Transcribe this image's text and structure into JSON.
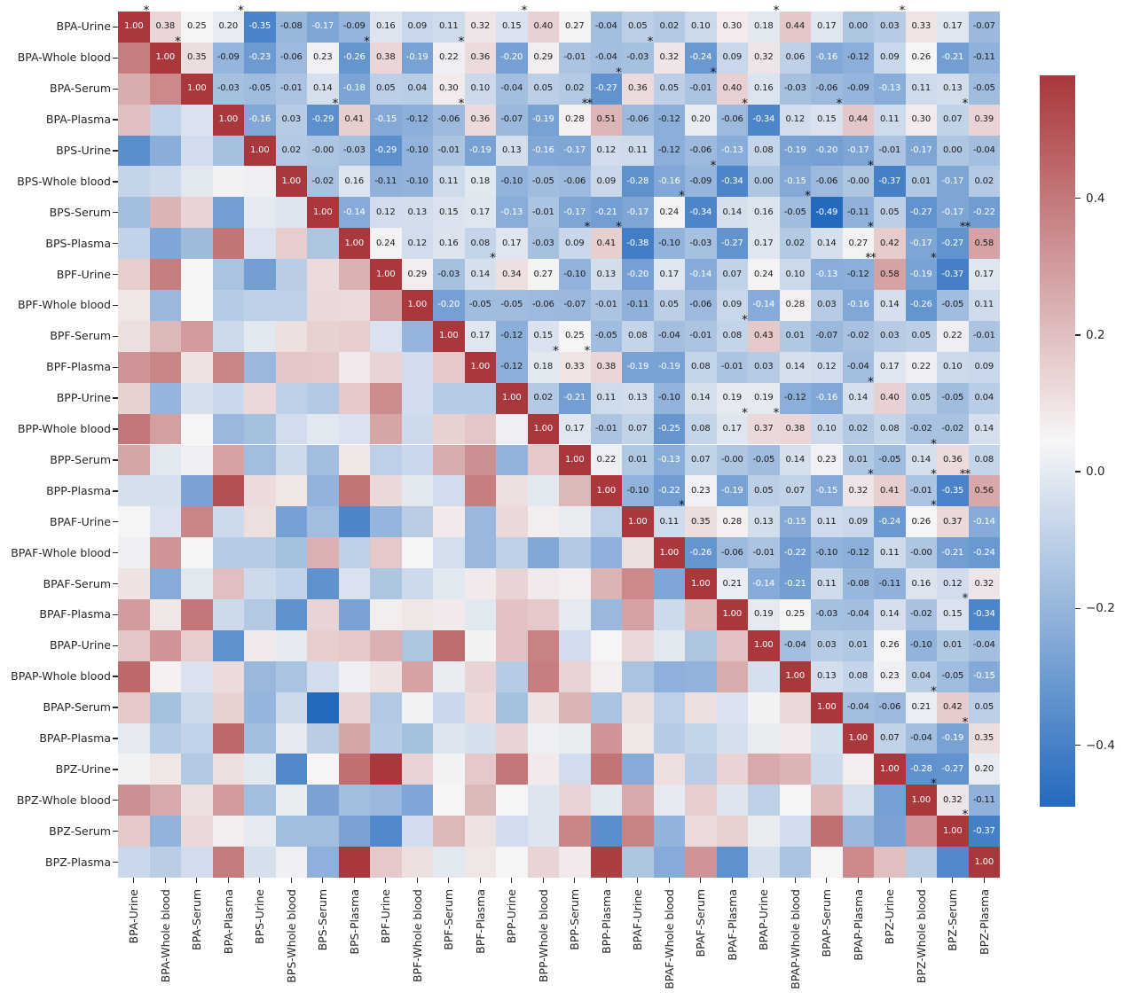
{
  "chart_data": {
    "type": "heatmap",
    "description": "Pairwise Spearman-style correlation matrix of bisphenol analogues (BPA, BPS, BPF, BPP, BPAF, BPAP, BPZ) measured in Urine, Whole blood, Serum and Plasma. Upper triangle and diagonal are annotated with coefficients; lower triangle shows mirrored colors only; asterisks mark significant cells.",
    "labels": [
      "BPA-Urine",
      "BPA-Whole blood",
      "BPA-Serum",
      "BPA-Plasma",
      "BPS-Urine",
      "BPS-Whole blood",
      "BPS-Serum",
      "BPS-Plasma",
      "BPF-Urine",
      "BPF-Whole blood",
      "BPF-Serum",
      "BPF-Plasma",
      "BPP-Urine",
      "BPP-Whole blood",
      "BPP-Serum",
      "BPP-Plasma",
      "BPAF-Urine",
      "BPAF-Whole blood",
      "BPAF-Serum",
      "BPAF-Plasma",
      "BPAP-Urine",
      "BPAP-Whole blood",
      "BPAP-Serum",
      "BPAP-Plasma",
      "BPZ-Urine",
      "BPZ-Whole blood",
      "BPZ-Serum",
      "BPZ-Plasma"
    ],
    "upper_triangle_rows": [
      [
        "1.00",
        "0.38",
        "0.25",
        "0.20",
        "-0.35",
        "-0.08",
        "-0.17",
        "-0.09",
        "0.16",
        "0.09",
        "0.11",
        "0.32",
        "0.15",
        "0.40",
        "0.27",
        "-0.04",
        "0.05",
        "0.02",
        "0.10",
        "0.30",
        "0.18",
        "0.44",
        "0.17",
        "0.00",
        "0.03",
        "0.33",
        "0.17",
        "-0.07"
      ],
      [
        "1.00",
        "0.35",
        "-0.09",
        "-0.23",
        "-0.06",
        "0.23",
        "-0.26",
        "0.38",
        "-0.19",
        "0.22",
        "0.36",
        "-0.20",
        "0.29",
        "-0.01",
        "-0.04",
        "-0.03",
        "0.32",
        "-0.24",
        "0.09",
        "0.32",
        "0.06",
        "-0.16",
        "-0.12",
        "0.09",
        "0.26",
        "-0.21",
        "-0.11"
      ],
      [
        "1.00",
        "-0.03",
        "-0.05",
        "-0.01",
        "0.14",
        "-0.18",
        "0.05",
        "0.04",
        "0.30",
        "0.10",
        "-0.04",
        "0.05",
        "0.02",
        "-0.27",
        "0.36",
        "0.05",
        "-0.01",
        "0.40",
        "0.16",
        "-0.03",
        "-0.06",
        "-0.09",
        "-0.13",
        "0.11",
        "0.13",
        "-0.05"
      ],
      [
        "1.00",
        "-0.16",
        "0.03",
        "-0.29",
        "0.41",
        "-0.15",
        "-0.12",
        "-0.06",
        "0.36",
        "-0.07",
        "-0.19",
        "0.28",
        "0.51",
        "-0.06",
        "-0.12",
        "0.20",
        "-0.06",
        "-0.34",
        "0.12",
        "0.15",
        "0.44",
        "0.11",
        "0.30",
        "0.07",
        "0.39"
      ],
      [
        "1.00",
        "0.02",
        "-0.00",
        "-0.03",
        "-0.29",
        "-0.10",
        "-0.01",
        "-0.19",
        "0.13",
        "-0.16",
        "-0.17",
        "0.12",
        "0.11",
        "-0.12",
        "-0.06",
        "-0.13",
        "0.08",
        "-0.19",
        "-0.20",
        "-0.17",
        "-0.01",
        "-0.17",
        "0.00",
        "-0.04"
      ],
      [
        "1.00",
        "-0.02",
        "0.16",
        "-0.11",
        "-0.10",
        "0.11",
        "0.18",
        "-0.10",
        "-0.05",
        "-0.06",
        "0.09",
        "-0.28",
        "-0.16",
        "-0.09",
        "-0.34",
        "0.00",
        "-0.15",
        "-0.06",
        "-0.00",
        "-0.37",
        "0.01",
        "-0.17",
        "0.02"
      ],
      [
        "1.00",
        "-0.14",
        "0.12",
        "0.13",
        "0.15",
        "0.17",
        "-0.13",
        "-0.01",
        "-0.17",
        "-0.21",
        "-0.17",
        "0.24",
        "-0.34",
        "0.14",
        "0.16",
        "-0.05",
        "-0.49",
        "-0.11",
        "0.05",
        "-0.27",
        "-0.17",
        "-0.22"
      ],
      [
        "1.00",
        "0.24",
        "0.12",
        "0.16",
        "0.08",
        "0.17",
        "-0.03",
        "0.09",
        "0.41",
        "-0.38",
        "-0.10",
        "-0.03",
        "-0.27",
        "0.17",
        "0.02",
        "0.14",
        "0.27",
        "0.42",
        "-0.17",
        "-0.27",
        "0.58"
      ],
      [
        "1.00",
        "0.29",
        "-0.03",
        "0.14",
        "0.34",
        "0.27",
        "-0.10",
        "0.13",
        "-0.20",
        "0.17",
        "-0.14",
        "0.07",
        "0.24",
        "0.10",
        "-0.13",
        "-0.12",
        "0.58",
        "-0.19",
        "-0.37",
        "0.17"
      ],
      [
        "1.00",
        "-0.20",
        "-0.05",
        "-0.05",
        "-0.06",
        "-0.07",
        "-0.01",
        "-0.11",
        "0.05",
        "-0.06",
        "0.09",
        "-0.14",
        "0.28",
        "0.03",
        "-0.16",
        "0.14",
        "-0.26",
        "-0.05",
        "0.11"
      ],
      [
        "1.00",
        "0.17",
        "-0.12",
        "0.15",
        "0.25",
        "-0.05",
        "0.08",
        "-0.04",
        "-0.01",
        "0.08",
        "0.43",
        "0.01",
        "-0.07",
        "-0.02",
        "0.03",
        "0.05",
        "0.22",
        "-0.01"
      ],
      [
        "1.00",
        "-0.12",
        "0.18",
        "0.33",
        "0.38",
        "-0.19",
        "-0.19",
        "0.08",
        "-0.01",
        "0.03",
        "0.14",
        "0.12",
        "-0.04",
        "0.17",
        "0.22",
        "0.10",
        "0.09"
      ],
      [
        "1.00",
        "0.02",
        "-0.21",
        "0.11",
        "0.13",
        "-0.10",
        "0.14",
        "0.19",
        "0.19",
        "-0.12",
        "-0.16",
        "0.14",
        "0.40",
        "0.05",
        "-0.05",
        "0.04"
      ],
      [
        "1.00",
        "0.17",
        "-0.01",
        "0.07",
        "-0.25",
        "0.08",
        "0.17",
        "0.37",
        "0.38",
        "0.10",
        "0.02",
        "0.08",
        "-0.02",
        "-0.02",
        "0.14"
      ],
      [
        "1.00",
        "0.22",
        "0.01",
        "-0.13",
        "0.07",
        "-0.00",
        "-0.05",
        "0.14",
        "0.23",
        "0.01",
        "-0.05",
        "0.14",
        "0.36",
        "0.08"
      ],
      [
        "1.00",
        "-0.10",
        "-0.22",
        "0.23",
        "-0.19",
        "0.05",
        "0.07",
        "-0.15",
        "0.32",
        "0.41",
        "-0.01",
        "-0.35",
        "0.56"
      ],
      [
        "1.00",
        "0.11",
        "0.35",
        "0.28",
        "0.13",
        "-0.15",
        "0.11",
        "0.09",
        "-0.24",
        "0.26",
        "0.37",
        "-0.14"
      ],
      [
        "1.00",
        "-0.26",
        "-0.06",
        "-0.01",
        "-0.22",
        "-0.10",
        "-0.12",
        "0.11",
        "-0.00",
        "-0.21",
        "-0.24"
      ],
      [
        "1.00",
        "0.21",
        "-0.14",
        "-0.21",
        "0.11",
        "-0.08",
        "-0.11",
        "0.16",
        "0.12",
        "0.32"
      ],
      [
        "1.00",
        "0.19",
        "0.25",
        "-0.03",
        "-0.04",
        "0.14",
        "-0.02",
        "0.15",
        "-0.34"
      ],
      [
        "1.00",
        "-0.04",
        "0.03",
        "0.01",
        "0.26",
        "-0.10",
        "0.01",
        "-0.04"
      ],
      [
        "1.00",
        "0.13",
        "0.08",
        "0.23",
        "0.04",
        "-0.05",
        "-0.15"
      ],
      [
        "1.00",
        "-0.04",
        "-0.06",
        "0.21",
        "0.42",
        "0.05"
      ],
      [
        "1.00",
        "0.07",
        "-0.04",
        "-0.19",
        "0.35"
      ],
      [
        "1.00",
        "-0.28",
        "-0.27",
        "0.20"
      ],
      [
        "1.00",
        "0.32",
        "-0.11"
      ],
      [
        "1.00",
        "-0.37"
      ],
      [
        "1.00"
      ]
    ],
    "significance_markers": [
      [
        0,
        1,
        "*"
      ],
      [
        0,
        4,
        "*"
      ],
      [
        0,
        13,
        "*"
      ],
      [
        0,
        21,
        "*"
      ],
      [
        0,
        25,
        "*"
      ],
      [
        1,
        2,
        "*"
      ],
      [
        1,
        8,
        "*"
      ],
      [
        1,
        11,
        "*"
      ],
      [
        1,
        17,
        "*"
      ],
      [
        2,
        16,
        "*"
      ],
      [
        2,
        19,
        "*"
      ],
      [
        3,
        7,
        "*"
      ],
      [
        3,
        11,
        "*"
      ],
      [
        3,
        15,
        "**"
      ],
      [
        3,
        20,
        "*"
      ],
      [
        3,
        23,
        "*"
      ],
      [
        3,
        27,
        "*"
      ],
      [
        5,
        19,
        "*"
      ],
      [
        5,
        24,
        "*"
      ],
      [
        6,
        18,
        "*"
      ],
      [
        6,
        22,
        "*"
      ],
      [
        7,
        15,
        "*"
      ],
      [
        7,
        16,
        "*"
      ],
      [
        7,
        24,
        "*"
      ],
      [
        7,
        27,
        "**"
      ],
      [
        8,
        12,
        "*"
      ],
      [
        8,
        24,
        "**"
      ],
      [
        8,
        26,
        "*"
      ],
      [
        10,
        20,
        "*"
      ],
      [
        11,
        14,
        "*"
      ],
      [
        11,
        15,
        "*"
      ],
      [
        12,
        24,
        "*"
      ],
      [
        13,
        20,
        "*"
      ],
      [
        13,
        21,
        "*"
      ],
      [
        14,
        26,
        "*"
      ],
      [
        15,
        24,
        "*"
      ],
      [
        15,
        26,
        "*"
      ],
      [
        15,
        27,
        "**"
      ],
      [
        16,
        18,
        "*"
      ],
      [
        16,
        26,
        "*"
      ],
      [
        19,
        27,
        "*"
      ],
      [
        22,
        26,
        "*"
      ],
      [
        23,
        27,
        "*"
      ],
      [
        25,
        26,
        "*"
      ],
      [
        26,
        27,
        "*"
      ]
    ],
    "colorbar": {
      "tick_labels": [
        "0.4",
        "0.2",
        "0.0",
        "−0.2",
        "−0.4"
      ],
      "tick_values": [
        0.4,
        0.2,
        0.0,
        -0.2,
        -0.4
      ],
      "vmin": -0.49,
      "vmax": 0.58
    },
    "normalization": {
      "annotated_upper": {
        "vmin": -0.49,
        "vmax": 1.0
      },
      "lower_and_colorbar": {
        "vmin": -0.49,
        "vmax": 0.58
      }
    },
    "colors": {
      "cmap_blue_end": "#2369bd",
      "cmap_midpoint": "#f7f6f6",
      "cmap_red_end": "#a9373b",
      "annotation_dark": "#1a1a1a",
      "annotation_light": "#ffffff",
      "axis_text": "#262626",
      "background": "#ffffff"
    },
    "legend_position": "right-colorbar",
    "grid": "off"
  }
}
